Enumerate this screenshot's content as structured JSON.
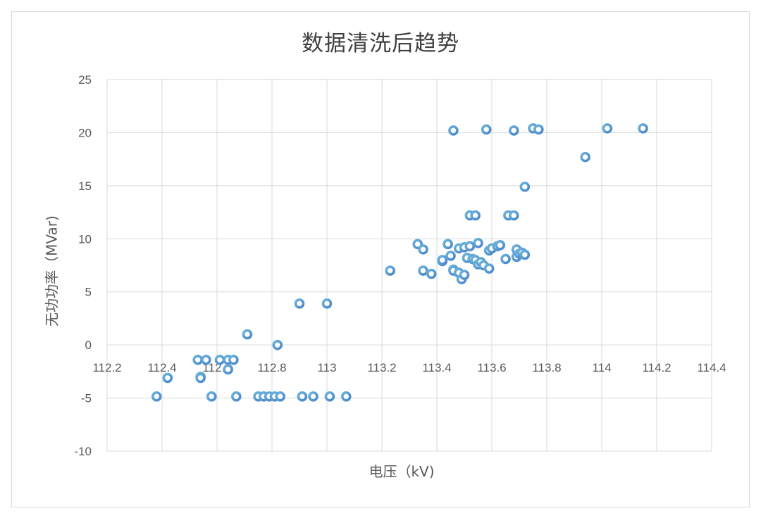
{
  "chart_data": {
    "type": "scatter",
    "title": "数据清洗后趋势",
    "xlabel": "电压（kV)",
    "ylabel": "无功功率（MVar)",
    "xlim": [
      112.2,
      114.4
    ],
    "ylim": [
      -10,
      25
    ],
    "x_ticks": [
      112.2,
      112.4,
      112.6,
      112.8,
      113,
      113.2,
      113.4,
      113.6,
      113.8,
      114,
      114.2,
      114.4
    ],
    "x_tick_labels": [
      "112.2",
      "112.4",
      "112.6",
      "112.8",
      "113",
      "113.2",
      "113.4",
      "113.6",
      "113.8",
      "114",
      "114.2",
      "114.4"
    ],
    "y_ticks": [
      25,
      20,
      15,
      10,
      5,
      0,
      -5,
      -10
    ],
    "y_tick_labels": [
      "25",
      "20",
      "15",
      "10",
      "5",
      "0",
      "-5",
      "-10"
    ],
    "grid": true,
    "legend": null,
    "marker_color": "#5b9bd5",
    "series": [
      {
        "name": "无功功率",
        "points": [
          [
            112.38,
            -4.85
          ],
          [
            112.42,
            -3.1
          ],
          [
            112.53,
            -1.4
          ],
          [
            112.54,
            -3.0
          ],
          [
            112.54,
            -3.1
          ],
          [
            112.56,
            -1.4
          ],
          [
            112.58,
            -4.85
          ],
          [
            112.61,
            -1.4
          ],
          [
            112.64,
            -1.4
          ],
          [
            112.64,
            -2.3
          ],
          [
            112.66,
            -1.4
          ],
          [
            112.67,
            -4.85
          ],
          [
            112.71,
            1.0
          ],
          [
            112.75,
            -4.85
          ],
          [
            112.77,
            -4.85
          ],
          [
            112.79,
            -4.85
          ],
          [
            112.81,
            -4.85
          ],
          [
            112.82,
            0.0
          ],
          [
            112.83,
            -4.85
          ],
          [
            112.9,
            3.9
          ],
          [
            112.91,
            -4.85
          ],
          [
            112.95,
            -4.85
          ],
          [
            113.0,
            3.9
          ],
          [
            113.01,
            -4.85
          ],
          [
            113.07,
            -4.85
          ],
          [
            113.23,
            7.0
          ],
          [
            113.33,
            9.5
          ],
          [
            113.35,
            9.0
          ],
          [
            113.35,
            7.0
          ],
          [
            113.38,
            6.7
          ],
          [
            113.42,
            7.9
          ],
          [
            113.42,
            8.0
          ],
          [
            113.44,
            9.5
          ],
          [
            113.45,
            8.4
          ],
          [
            113.46,
            7.1
          ],
          [
            113.46,
            7.0
          ],
          [
            113.46,
            20.2
          ],
          [
            113.48,
            9.1
          ],
          [
            113.48,
            6.8
          ],
          [
            113.49,
            6.2
          ],
          [
            113.5,
            6.6
          ],
          [
            113.5,
            9.2
          ],
          [
            113.51,
            8.2
          ],
          [
            113.52,
            12.2
          ],
          [
            113.52,
            9.3
          ],
          [
            113.53,
            8.1
          ],
          [
            113.54,
            12.2
          ],
          [
            113.54,
            8.0
          ],
          [
            113.55,
            9.6
          ],
          [
            113.55,
            7.6
          ],
          [
            113.56,
            7.8
          ],
          [
            113.57,
            7.5
          ],
          [
            113.58,
            20.3
          ],
          [
            113.59,
            7.2
          ],
          [
            113.59,
            8.9
          ],
          [
            113.6,
            9.1
          ],
          [
            113.62,
            9.3
          ],
          [
            113.63,
            9.4
          ],
          [
            113.65,
            8.1
          ],
          [
            113.66,
            12.2
          ],
          [
            113.68,
            12.2
          ],
          [
            113.68,
            20.2
          ],
          [
            113.69,
            8.3
          ],
          [
            113.69,
            9.0
          ],
          [
            113.7,
            8.6
          ],
          [
            113.71,
            8.7
          ],
          [
            113.72,
            8.5
          ],
          [
            113.72,
            14.9
          ],
          [
            113.75,
            20.4
          ],
          [
            113.77,
            20.3
          ],
          [
            113.94,
            17.7
          ],
          [
            114.02,
            20.4
          ],
          [
            114.15,
            20.4
          ]
        ]
      }
    ]
  }
}
